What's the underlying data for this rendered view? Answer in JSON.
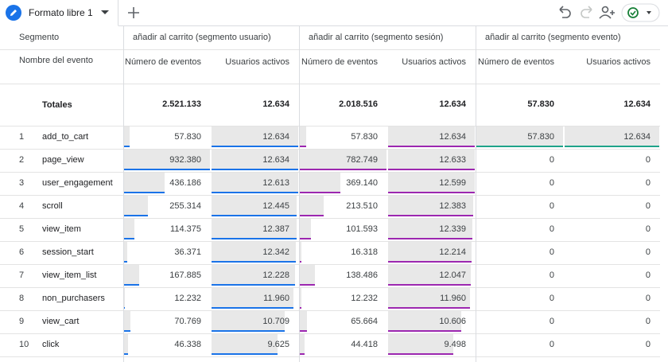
{
  "tab": {
    "title": "Formato libre 1"
  },
  "table": {
    "segment_header": "Segmento",
    "event_header": "Nombre del evento",
    "segments": [
      {
        "name": "añadir al carrito (segmento usuario)",
        "color": "#1a73e8",
        "columns": [
          "Número de eventos",
          "Usuarios activos"
        ]
      },
      {
        "name": "añadir al carrito (segmento sesión)",
        "color": "#9c27b0",
        "columns": [
          "Número de eventos",
          "Usuarios activos"
        ]
      },
      {
        "name": "añadir al carrito (segmento evento)",
        "color": "#1fa389",
        "columns": [
          "Número de eventos",
          "Usuarios activos"
        ]
      }
    ],
    "totals": {
      "label": "Totales",
      "cells": [
        {
          "value": 2521133,
          "label": "2.521.133"
        },
        {
          "value": 12634,
          "label": "12.634"
        },
        {
          "value": 2018516,
          "label": "2.018.516"
        },
        {
          "value": 12634,
          "label": "12.634"
        },
        {
          "value": 57830,
          "label": "57.830"
        },
        {
          "value": 12634,
          "label": "12.634"
        }
      ]
    },
    "rows": [
      {
        "index": 1,
        "event": "add_to_cart",
        "cells": [
          {
            "value": 57830,
            "label": "57.830"
          },
          {
            "value": 12634,
            "label": "12.634"
          },
          {
            "value": 57830,
            "label": "57.830"
          },
          {
            "value": 12634,
            "label": "12.634"
          },
          {
            "value": 57830,
            "label": "57.830"
          },
          {
            "value": 12634,
            "label": "12.634"
          }
        ]
      },
      {
        "index": 2,
        "event": "page_view",
        "cells": [
          {
            "value": 932380,
            "label": "932.380"
          },
          {
            "value": 12634,
            "label": "12.634"
          },
          {
            "value": 782749,
            "label": "782.749"
          },
          {
            "value": 12633,
            "label": "12.633"
          },
          0,
          0
        ]
      },
      {
        "index": 3,
        "event": "user_engagement",
        "cells": [
          {
            "value": 436186,
            "label": "436.186"
          },
          {
            "value": 12613,
            "label": "12.613"
          },
          {
            "value": 369140,
            "label": "369.140"
          },
          {
            "value": 12599,
            "label": "12.599"
          },
          0,
          0
        ]
      },
      {
        "index": 4,
        "event": "scroll",
        "cells": [
          {
            "value": 255314,
            "label": "255.314"
          },
          {
            "value": 12445,
            "label": "12.445"
          },
          {
            "value": 213510,
            "label": "213.510"
          },
          {
            "value": 12383,
            "label": "12.383"
          },
          0,
          0
        ]
      },
      {
        "index": 5,
        "event": "view_item",
        "cells": [
          {
            "value": 114375,
            "label": "114.375"
          },
          {
            "value": 12387,
            "label": "12.387"
          },
          {
            "value": 101593,
            "label": "101.593"
          },
          {
            "value": 12339,
            "label": "12.339"
          },
          0,
          0
        ]
      },
      {
        "index": 6,
        "event": "session_start",
        "cells": [
          {
            "value": 36371,
            "label": "36.371"
          },
          {
            "value": 12342,
            "label": "12.342"
          },
          {
            "value": 16318,
            "label": "16.318"
          },
          {
            "value": 12214,
            "label": "12.214"
          },
          0,
          0
        ]
      },
      {
        "index": 7,
        "event": "view_item_list",
        "cells": [
          {
            "value": 167885,
            "label": "167.885"
          },
          {
            "value": 12228,
            "label": "12.228"
          },
          {
            "value": 138486,
            "label": "138.486"
          },
          {
            "value": 12047,
            "label": "12.047"
          },
          0,
          0
        ]
      },
      {
        "index": 8,
        "event": "non_purchasers",
        "cells": [
          {
            "value": 12232,
            "label": "12.232"
          },
          {
            "value": 11960,
            "label": "11.960"
          },
          {
            "value": 12232,
            "label": "12.232"
          },
          {
            "value": 11960,
            "label": "11.960"
          },
          0,
          0
        ]
      },
      {
        "index": 9,
        "event": "view_cart",
        "cells": [
          {
            "value": 70769,
            "label": "70.769"
          },
          {
            "value": 10709,
            "label": "10.709"
          },
          {
            "value": 65664,
            "label": "65.664"
          },
          {
            "value": 10606,
            "label": "10.606"
          },
          0,
          0
        ]
      },
      {
        "index": 10,
        "event": "click",
        "cells": [
          {
            "value": 46338,
            "label": "46.338"
          },
          {
            "value": 9625,
            "label": "9.625"
          },
          {
            "value": 44418,
            "label": "44.418"
          },
          {
            "value": 9498,
            "label": "9.498"
          },
          0,
          0
        ]
      }
    ]
  }
}
